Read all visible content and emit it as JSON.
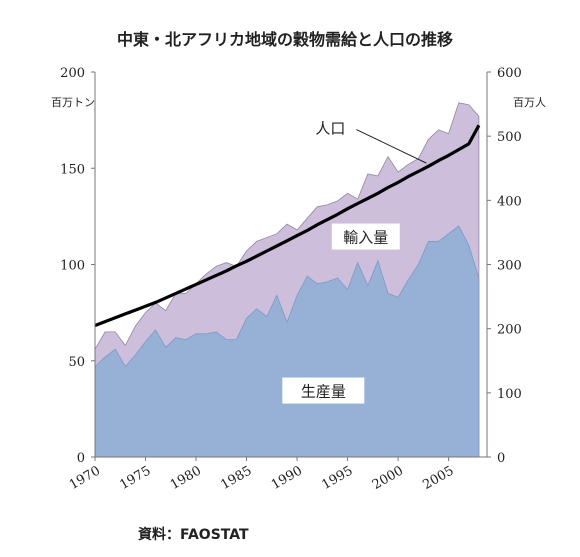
{
  "chart_data": {
    "type": "area",
    "title": "中東・北アフリカ地域の穀物需給と人口の推移",
    "left_unit": "百万トン",
    "right_unit": "百万人",
    "source": "資料：FAOSTAT",
    "x": [
      1970,
      1971,
      1972,
      1973,
      1974,
      1975,
      1976,
      1977,
      1978,
      1979,
      1980,
      1981,
      1982,
      1983,
      1984,
      1985,
      1986,
      1987,
      1988,
      1989,
      1990,
      1991,
      1992,
      1993,
      1994,
      1995,
      1996,
      1997,
      1998,
      1999,
      2000,
      2001,
      2002,
      2003,
      2004,
      2005,
      2006,
      2007,
      2008
    ],
    "xticks": [
      1970,
      1975,
      1980,
      1985,
      1990,
      1995,
      2000,
      2005
    ],
    "xlim": [
      1970,
      2008.8
    ],
    "left_ylim": [
      0,
      200
    ],
    "left_yticks": [
      0,
      50,
      100,
      150,
      200
    ],
    "right_ylim": [
      0,
      600
    ],
    "right_yticks": [
      0,
      100,
      200,
      300,
      400,
      500,
      600
    ],
    "series": [
      {
        "name": "生産量",
        "axis": "left",
        "color": "#96b0d6",
        "values": [
          47,
          52,
          56,
          47,
          53,
          60,
          66,
          57,
          62,
          61,
          64,
          64,
          65,
          61,
          61,
          72,
          77,
          73,
          84,
          70,
          84,
          94,
          90,
          91,
          93,
          87,
          101,
          89,
          102,
          85,
          83,
          92,
          100,
          112,
          112,
          116,
          120,
          110,
          93
        ]
      },
      {
        "name": "輸入量",
        "axis": "left",
        "stacked_total": true,
        "color": "#cdbfdc",
        "values": [
          56,
          65,
          65,
          58,
          68,
          75,
          80,
          76,
          85,
          85,
          90,
          95,
          99,
          101,
          99,
          107,
          112,
          114,
          116,
          121,
          118,
          124,
          130,
          131,
          133,
          137,
          134,
          147,
          146,
          156,
          148,
          152,
          155,
          165,
          170,
          168,
          184,
          183,
          177
        ]
      },
      {
        "name": "人口",
        "axis": "right",
        "color": "#000000",
        "values": [
          205,
          211,
          217,
          223,
          229,
          235,
          241,
          248,
          255,
          262,
          269,
          276,
          283,
          290,
          298,
          305,
          313,
          321,
          329,
          337,
          345,
          353,
          362,
          370,
          378,
          387,
          395,
          403,
          411,
          420,
          428,
          437,
          445,
          453,
          462,
          470,
          479,
          488,
          517
        ]
      }
    ]
  }
}
